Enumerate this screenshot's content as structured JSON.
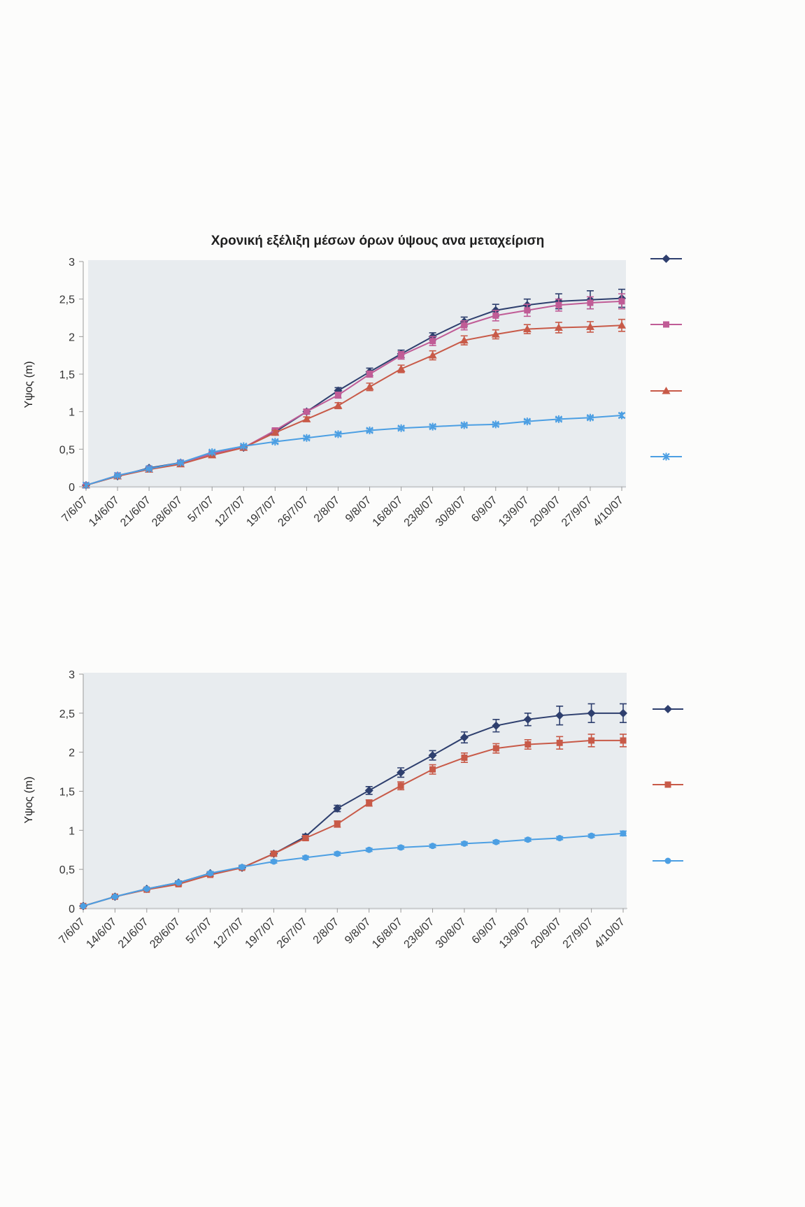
{
  "chart_data": [
    {
      "type": "line",
      "title": "Χρονική εξέλιξη μέσων όρων ύψους ανα μεταχείριση",
      "xlabel": "",
      "ylabel": "Υψος (m)",
      "ylim": [
        0,
        3
      ],
      "yticks": [
        0,
        0.5,
        1,
        1.5,
        2,
        2.5,
        3
      ],
      "ytick_labels": [
        "0",
        "0,5",
        "1",
        "1,5",
        "2",
        "2,5",
        "3"
      ],
      "categories": [
        "7/6/07",
        "14/6/07",
        "21/6/07",
        "28/6/07",
        "5/7/07",
        "12/7/07",
        "19/7/07",
        "26/7/07",
        "2/8/07",
        "9/8/07",
        "16/8/07",
        "23/8/07",
        "30/8/07",
        "6/9/07",
        "13/9/07",
        "20/9/07",
        "27/9/07",
        "4/10/07"
      ],
      "grid": false,
      "legend": "right",
      "background": "#e8ecef",
      "series": [
        {
          "color": "#2e3f6e",
          "marker": "diamond",
          "values": [
            0.02,
            0.14,
            0.25,
            0.32,
            0.44,
            0.52,
            0.73,
            1.0,
            1.28,
            1.53,
            1.77,
            2.0,
            2.2,
            2.35,
            2.42,
            2.47,
            2.49,
            2.51
          ],
          "errors": [
            0,
            0.01,
            0.01,
            0.02,
            0.02,
            0.02,
            0.03,
            0.03,
            0.04,
            0.05,
            0.05,
            0.05,
            0.06,
            0.08,
            0.08,
            0.1,
            0.12,
            0.12
          ]
        },
        {
          "color": "#c05c96",
          "marker": "square",
          "values": [
            0.02,
            0.15,
            0.24,
            0.32,
            0.44,
            0.52,
            0.75,
            1.0,
            1.22,
            1.5,
            1.75,
            1.94,
            2.15,
            2.28,
            2.35,
            2.42,
            2.45,
            2.47
          ],
          "errors": [
            0,
            0.01,
            0.01,
            0.02,
            0.02,
            0.02,
            0.03,
            0.03,
            0.04,
            0.04,
            0.05,
            0.06,
            0.06,
            0.07,
            0.08,
            0.08,
            0.08,
            0.1
          ]
        },
        {
          "color": "#c85a48",
          "marker": "triangle",
          "values": [
            0.02,
            0.14,
            0.23,
            0.3,
            0.42,
            0.52,
            0.72,
            0.9,
            1.08,
            1.33,
            1.57,
            1.75,
            1.95,
            2.03,
            2.1,
            2.12,
            2.13,
            2.15
          ],
          "errors": [
            0,
            0.01,
            0.01,
            0.02,
            0.02,
            0.02,
            0.03,
            0.03,
            0.04,
            0.05,
            0.05,
            0.06,
            0.06,
            0.06,
            0.06,
            0.07,
            0.07,
            0.08
          ]
        },
        {
          "color": "#4c9fe3",
          "marker": "star",
          "values": [
            0.02,
            0.15,
            0.24,
            0.32,
            0.46,
            0.54,
            0.6,
            0.65,
            0.7,
            0.75,
            0.78,
            0.8,
            0.82,
            0.83,
            0.87,
            0.9,
            0.92,
            0.95
          ],
          "errors": [
            0,
            0.01,
            0.01,
            0.01,
            0.02,
            0.02,
            0.02,
            0.02,
            0.02,
            0.02,
            0.02,
            0.02,
            0.02,
            0.02,
            0.02,
            0.02,
            0.02,
            0.03
          ]
        }
      ]
    },
    {
      "type": "line",
      "title": "",
      "xlabel": "",
      "ylabel": "Υψος (m)",
      "ylim": [
        0,
        3
      ],
      "yticks": [
        0,
        0.5,
        1,
        1.5,
        2,
        2.5,
        3
      ],
      "ytick_labels": [
        "0",
        "0,5",
        "1",
        "1,5",
        "2",
        "2,5",
        "3"
      ],
      "categories": [
        "7/6/07",
        "14/6/07",
        "21/6/07",
        "28/6/07",
        "5/7/07",
        "12/7/07",
        "19/7/07",
        "26/7/07",
        "2/8/07",
        "9/8/07",
        "16/8/07",
        "23/8/07",
        "30/8/07",
        "6/9/07",
        "13/9/07",
        "20/9/07",
        "27/9/07",
        "4/10/07"
      ],
      "grid": false,
      "legend": "right",
      "background": "#e8ecef",
      "series": [
        {
          "color": "#2e3f6e",
          "marker": "diamond",
          "values": [
            0.03,
            0.15,
            0.25,
            0.33,
            0.45,
            0.52,
            0.7,
            0.92,
            1.28,
            1.51,
            1.74,
            1.96,
            2.19,
            2.34,
            2.42,
            2.47,
            2.5,
            2.5
          ],
          "errors": [
            0,
            0.01,
            0.01,
            0.02,
            0.02,
            0.02,
            0.03,
            0.03,
            0.04,
            0.05,
            0.06,
            0.06,
            0.07,
            0.08,
            0.08,
            0.12,
            0.12,
            0.12
          ]
        },
        {
          "color": "#c85a48",
          "marker": "square",
          "values": [
            0.03,
            0.15,
            0.24,
            0.31,
            0.43,
            0.52,
            0.7,
            0.9,
            1.08,
            1.35,
            1.57,
            1.78,
            1.93,
            2.05,
            2.1,
            2.12,
            2.15,
            2.15
          ],
          "errors": [
            0,
            0.01,
            0.01,
            0.02,
            0.02,
            0.02,
            0.03,
            0.03,
            0.04,
            0.04,
            0.05,
            0.06,
            0.06,
            0.06,
            0.06,
            0.08,
            0.08,
            0.08
          ]
        },
        {
          "color": "#4c9fe3",
          "marker": "circle",
          "values": [
            0.03,
            0.15,
            0.25,
            0.33,
            0.45,
            0.53,
            0.6,
            0.65,
            0.7,
            0.75,
            0.78,
            0.8,
            0.83,
            0.85,
            0.88,
            0.9,
            0.93,
            0.96
          ],
          "errors": [
            0,
            0.01,
            0.01,
            0.01,
            0.02,
            0.02,
            0.02,
            0.02,
            0.02,
            0.02,
            0.02,
            0.02,
            0.02,
            0.02,
            0.02,
            0.02,
            0.02,
            0.03
          ]
        }
      ]
    }
  ]
}
